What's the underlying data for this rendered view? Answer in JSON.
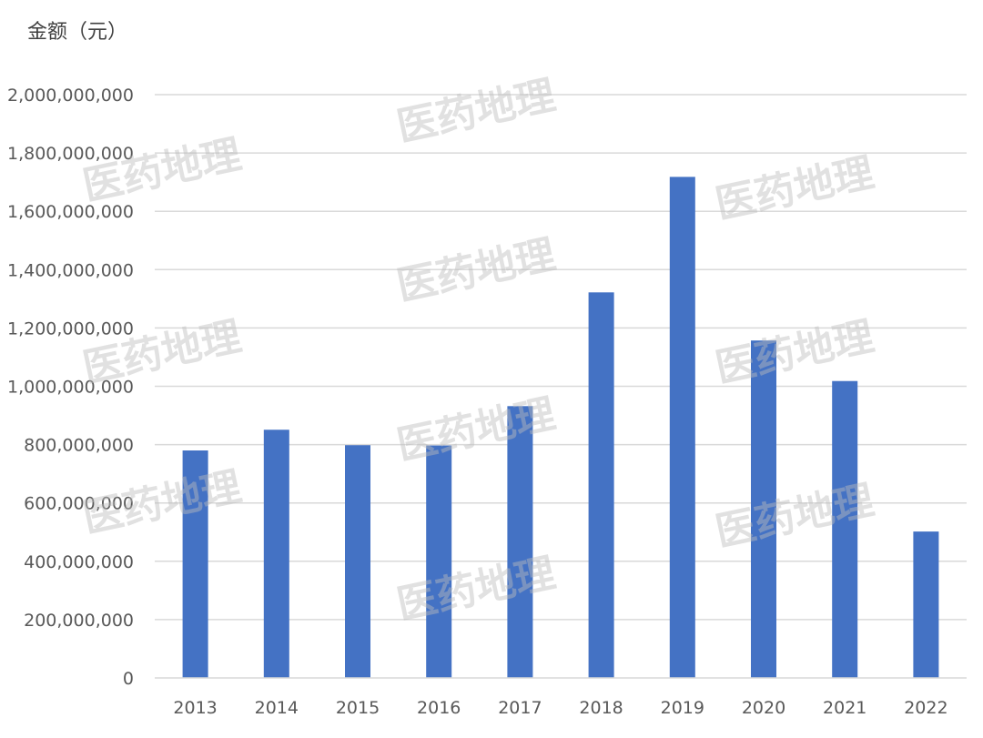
{
  "chart_data": {
    "type": "bar",
    "ylabel": "金额（元）",
    "categories": [
      "2013",
      "2014",
      "2015",
      "2016",
      "2017",
      "2018",
      "2019",
      "2020",
      "2021",
      "2022"
    ],
    "series": [
      {
        "values": [
          780000000,
          851000000,
          798000000,
          797000000,
          932000000,
          1322000000,
          1718000000,
          1157000000,
          1018000000,
          502000000
        ]
      }
    ],
    "ylim": [
      0,
      2000000000
    ],
    "yticks": [
      0,
      200000000,
      400000000,
      600000000,
      800000000,
      1000000000,
      1200000000,
      1400000000,
      1600000000,
      1800000000,
      2000000000
    ],
    "ytick_labels": [
      "0",
      "200,000,000",
      "400,000,000",
      "600,000,000",
      "800,000,000",
      "1,000,000,000",
      "1,200,000,000",
      "1,400,000,000",
      "1,600,000,000",
      "1,800,000,000",
      "2,000,000,000"
    ],
    "grid": true,
    "legend": "none",
    "bar_color": "#4472c4"
  },
  "watermark": {
    "text": "医药地理",
    "copies": 10
  }
}
